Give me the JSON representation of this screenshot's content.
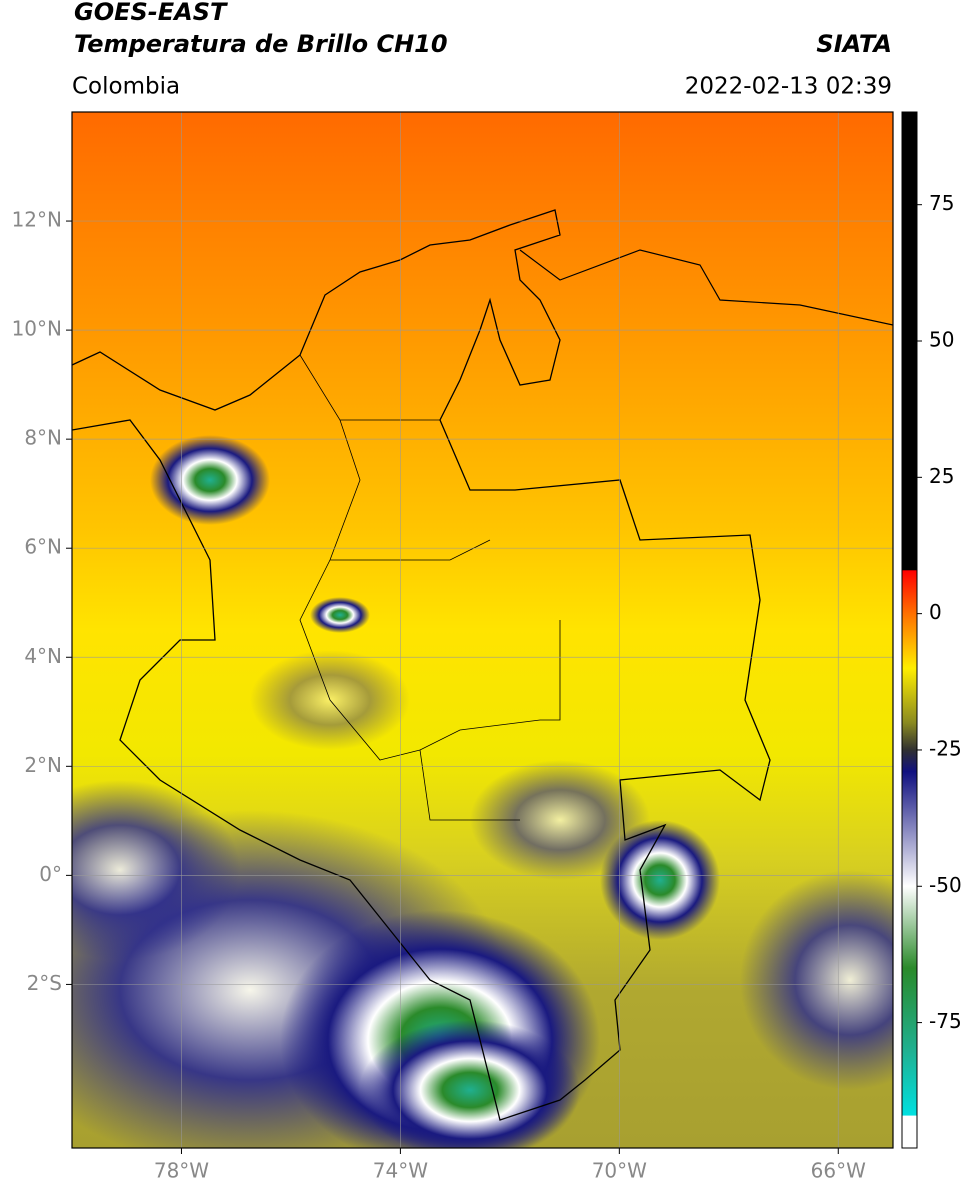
{
  "chart_data": {
    "type": "map",
    "title": "GOES-EAST",
    "subtitle": "Temperatura de Brillo CH10",
    "source": "SIATA",
    "region": "Colombia",
    "datetime": "2022-02-13 02:39",
    "xlim": [
      -80,
      -65
    ],
    "ylim": [
      -5,
      14
    ],
    "xticks": [
      {
        "value": -78,
        "label": "78°W"
      },
      {
        "value": -74,
        "label": "74°W"
      },
      {
        "value": -70,
        "label": "70°W"
      },
      {
        "value": -66,
        "label": "66°W"
      }
    ],
    "yticks": [
      {
        "value": 12,
        "label": "12°N"
      },
      {
        "value": 10,
        "label": "10°N"
      },
      {
        "value": 8,
        "label": "8°N"
      },
      {
        "value": 6,
        "label": "6°N"
      },
      {
        "value": 4,
        "label": "4°N"
      },
      {
        "value": 2,
        "label": "2°N"
      },
      {
        "value": 0,
        "label": "0°"
      },
      {
        "value": -2,
        "label": "2°S"
      }
    ],
    "grid": true,
    "clim": [
      -98,
      92
    ],
    "cticks": [
      75,
      50,
      25,
      0,
      -25,
      -50,
      -75
    ],
    "colormap": [
      {
        "value": 92,
        "color": "#000000"
      },
      {
        "value": 8,
        "color": "#000000"
      },
      {
        "value": 7.9,
        "color": "#ff0000"
      },
      {
        "value": 0,
        "color": "#ff7000"
      },
      {
        "value": -10,
        "color": "#ffee00"
      },
      {
        "value": -20,
        "color": "#8a8a20"
      },
      {
        "value": -25,
        "color": "#303030"
      },
      {
        "value": -29,
        "color": "#101080"
      },
      {
        "value": -50,
        "color": "#ffffff"
      },
      {
        "value": -65,
        "color": "#2a8a2a"
      },
      {
        "value": -80,
        "color": "#20b090"
      },
      {
        "value": -92,
        "color": "#00e0e0"
      },
      {
        "value": -92.1,
        "color": "#ffffff"
      },
      {
        "value": -98,
        "color": "#ffffff"
      }
    ]
  }
}
